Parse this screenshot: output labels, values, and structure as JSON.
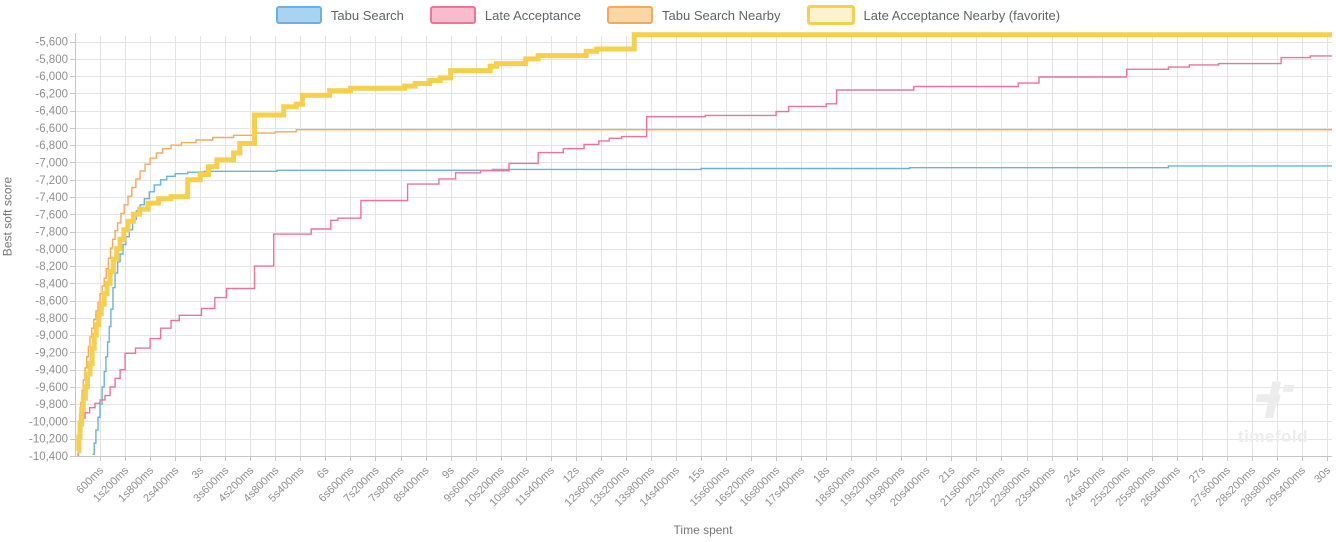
{
  "watermark": {
    "text": "timefold"
  },
  "colors": {
    "grid": "#e4e4e4",
    "axis_line": "#c6c6c6",
    "tick_text": "#8f8f8f",
    "axis_title_text": "#757575",
    "legend_text": "#5f6368",
    "watermark": "#ececec",
    "background": "#ffffff"
  },
  "chart_data": {
    "type": "line",
    "step": true,
    "title": "",
    "xlabel": "Time spent",
    "ylabel": "Best soft score",
    "xlim_ms": [
      0,
      30000
    ],
    "ylim": [
      -10400,
      -5500
    ],
    "grid": true,
    "legend_position": "top",
    "x_tick_interval_ms": 600,
    "x_tick_labels": [
      "600ms",
      "1s200ms",
      "1s800ms",
      "2s400ms",
      "3s",
      "3s600ms",
      "4s200ms",
      "4s800ms",
      "5s400ms",
      "6s",
      "6s600ms",
      "7s200ms",
      "7s800ms",
      "8s400ms",
      "9s",
      "9s600ms",
      "10s200ms",
      "10s800ms",
      "11s400ms",
      "12s",
      "12s600ms",
      "13s200ms",
      "13s800ms",
      "14s400ms",
      "15s",
      "15s600ms",
      "16s200ms",
      "16s800ms",
      "17s400ms",
      "18s",
      "18s600ms",
      "19s200ms",
      "19s800ms",
      "20s400ms",
      "21s",
      "21s600ms",
      "22s200ms",
      "22s800ms",
      "23s400ms",
      "24s",
      "24s600ms",
      "25s200ms",
      "25s800ms",
      "26s400ms",
      "27s",
      "27s600ms",
      "28s200ms",
      "28s800ms",
      "29s400ms",
      "30s"
    ],
    "y_tick_values": [
      -5600,
      -5800,
      -6000,
      -6200,
      -6400,
      -6600,
      -6800,
      -7000,
      -7200,
      -7400,
      -7600,
      -7800,
      -8000,
      -8200,
      -8400,
      -8600,
      -8800,
      -9000,
      -9200,
      -9400,
      -9600,
      -9800,
      -10000,
      -10200,
      -10400
    ],
    "y_tick_labels": [
      "-5,600",
      "-5,800",
      "-6,000",
      "-6,200",
      "-6,400",
      "-6,600",
      "-6,800",
      "-7,000",
      "-7,200",
      "-7,400",
      "-7,600",
      "-7,800",
      "-8,000",
      "-8,200",
      "-8,400",
      "-8,600",
      "-8,800",
      "-9,000",
      "-9,200",
      "-9,400",
      "-9,600",
      "-9,800",
      "-10,000",
      "-10,200",
      "-10,400"
    ],
    "series": [
      {
        "name": "Tabu Search",
        "color": "#6ab0e4",
        "legend_fill": "#a8d4f2",
        "line_width": 1.4,
        "favorite": false,
        "points": [
          [
            420,
            -10380
          ],
          [
            460,
            -10250
          ],
          [
            500,
            -10100
          ],
          [
            550,
            -9950
          ],
          [
            600,
            -9800
          ],
          [
            650,
            -9600
          ],
          [
            700,
            -9420
          ],
          [
            740,
            -9250
          ],
          [
            780,
            -9080
          ],
          [
            820,
            -8900
          ],
          [
            860,
            -8700
          ],
          [
            910,
            -8450
          ],
          [
            960,
            -8280
          ],
          [
            1020,
            -8150
          ],
          [
            1080,
            -8060
          ],
          [
            1150,
            -7950
          ],
          [
            1220,
            -7860
          ],
          [
            1300,
            -7780
          ],
          [
            1380,
            -7660
          ],
          [
            1470,
            -7560
          ],
          [
            1560,
            -7490
          ],
          [
            1660,
            -7420
          ],
          [
            1780,
            -7340
          ],
          [
            1900,
            -7260
          ],
          [
            2050,
            -7200
          ],
          [
            2200,
            -7160
          ],
          [
            2400,
            -7130
          ],
          [
            2700,
            -7112
          ],
          [
            3100,
            -7102
          ],
          [
            4840,
            -7090
          ],
          [
            10000,
            -7080
          ],
          [
            15000,
            -7070
          ],
          [
            20000,
            -7060
          ],
          [
            26200,
            -7040
          ]
        ]
      },
      {
        "name": "Late Acceptance",
        "color": "#ee7299",
        "legend_fill": "#f8bccd",
        "line_width": 1.4,
        "favorite": false,
        "points": [
          [
            50,
            -10390
          ],
          [
            80,
            -10280
          ],
          [
            110,
            -10160
          ],
          [
            150,
            -10050
          ],
          [
            190,
            -9960
          ],
          [
            240,
            -9900
          ],
          [
            350,
            -9840
          ],
          [
            480,
            -9790
          ],
          [
            600,
            -9750
          ],
          [
            720,
            -9700
          ],
          [
            840,
            -9600
          ],
          [
            960,
            -9500
          ],
          [
            1080,
            -9400
          ],
          [
            1200,
            -9210
          ],
          [
            1450,
            -9150
          ],
          [
            1800,
            -9040
          ],
          [
            2050,
            -8920
          ],
          [
            2300,
            -8830
          ],
          [
            2500,
            -8770
          ],
          [
            3030,
            -8690
          ],
          [
            3350,
            -8565
          ],
          [
            3630,
            -8460
          ],
          [
            4300,
            -8200
          ],
          [
            4760,
            -7830
          ],
          [
            5660,
            -7770
          ],
          [
            6130,
            -7670
          ],
          [
            6300,
            -7645
          ],
          [
            6850,
            -7440
          ],
          [
            7970,
            -7250
          ],
          [
            8720,
            -7190
          ],
          [
            9120,
            -7120
          ],
          [
            9720,
            -7095
          ],
          [
            10400,
            -7010
          ],
          [
            11100,
            -6885
          ],
          [
            11700,
            -6840
          ],
          [
            12200,
            -6790
          ],
          [
            12550,
            -6750
          ],
          [
            12800,
            -6720
          ],
          [
            13100,
            -6700
          ],
          [
            13700,
            -6470
          ],
          [
            15100,
            -6455
          ],
          [
            16800,
            -6410
          ],
          [
            17100,
            -6350
          ],
          [
            18000,
            -6320
          ],
          [
            18250,
            -6160
          ],
          [
            20100,
            -6120
          ],
          [
            22600,
            -6080
          ],
          [
            23100,
            -6010
          ],
          [
            25200,
            -5920
          ],
          [
            26200,
            -5895
          ],
          [
            26700,
            -5870
          ],
          [
            27400,
            -5855
          ],
          [
            28900,
            -5785
          ],
          [
            29600,
            -5765
          ]
        ]
      },
      {
        "name": "Tabu Search Nearby",
        "color": "#f4a85c",
        "legend_fill": "#fbd7a5",
        "line_width": 1.4,
        "favorite": false,
        "points": [
          [
            50,
            -10230
          ],
          [
            80,
            -10080
          ],
          [
            110,
            -9920
          ],
          [
            140,
            -9780
          ],
          [
            170,
            -9640
          ],
          [
            200,
            -9520
          ],
          [
            240,
            -9380
          ],
          [
            280,
            -9250
          ],
          [
            320,
            -9130
          ],
          [
            360,
            -9020
          ],
          [
            400,
            -8920
          ],
          [
            450,
            -8820
          ],
          [
            500,
            -8720
          ],
          [
            550,
            -8620
          ],
          [
            600,
            -8520
          ],
          [
            650,
            -8430
          ],
          [
            700,
            -8340
          ],
          [
            750,
            -8230
          ],
          [
            800,
            -8110
          ],
          [
            850,
            -7990
          ],
          [
            900,
            -7890
          ],
          [
            960,
            -7790
          ],
          [
            1020,
            -7700
          ],
          [
            1100,
            -7590
          ],
          [
            1180,
            -7490
          ],
          [
            1270,
            -7390
          ],
          [
            1360,
            -7290
          ],
          [
            1460,
            -7190
          ],
          [
            1560,
            -7100
          ],
          [
            1680,
            -7020
          ],
          [
            1800,
            -6950
          ],
          [
            1950,
            -6890
          ],
          [
            2100,
            -6840
          ],
          [
            2300,
            -6800
          ],
          [
            2550,
            -6770
          ],
          [
            2900,
            -6740
          ],
          [
            3300,
            -6710
          ],
          [
            3800,
            -6685
          ],
          [
            4300,
            -6660
          ],
          [
            4800,
            -6645
          ],
          [
            5300,
            -6620
          ]
        ]
      },
      {
        "name": "Late Acceptance Nearby (favorite)",
        "color": "#f6cf4d",
        "legend_fill": "#fcf2cf",
        "line_width": 5,
        "favorite": true,
        "points": [
          [
            50,
            -10340
          ],
          [
            90,
            -10180
          ],
          [
            120,
            -10020
          ],
          [
            160,
            -9860
          ],
          [
            200,
            -9730
          ],
          [
            250,
            -9600
          ],
          [
            300,
            -9450
          ],
          [
            360,
            -9330
          ],
          [
            410,
            -9150
          ],
          [
            460,
            -9000
          ],
          [
            510,
            -8880
          ],
          [
            570,
            -8750
          ],
          [
            630,
            -8640
          ],
          [
            700,
            -8520
          ],
          [
            770,
            -8400
          ],
          [
            840,
            -8260
          ],
          [
            920,
            -8120
          ],
          [
            1000,
            -8000
          ],
          [
            1080,
            -7890
          ],
          [
            1170,
            -7780
          ],
          [
            1270,
            -7680
          ],
          [
            1400,
            -7600
          ],
          [
            1550,
            -7540
          ],
          [
            1750,
            -7470
          ],
          [
            2000,
            -7420
          ],
          [
            2300,
            -7395
          ],
          [
            2700,
            -7200
          ],
          [
            3000,
            -7140
          ],
          [
            3200,
            -7050
          ],
          [
            3400,
            -6970
          ],
          [
            3800,
            -6890
          ],
          [
            3950,
            -6780
          ],
          [
            4300,
            -6450
          ],
          [
            5000,
            -6355
          ],
          [
            5300,
            -6325
          ],
          [
            5450,
            -6220
          ],
          [
            6100,
            -6170
          ],
          [
            6600,
            -6140
          ],
          [
            7900,
            -6115
          ],
          [
            8150,
            -6085
          ],
          [
            8500,
            -6050
          ],
          [
            8750,
            -6020
          ],
          [
            9000,
            -5935
          ],
          [
            9950,
            -5885
          ],
          [
            10100,
            -5855
          ],
          [
            10800,
            -5800
          ],
          [
            11100,
            -5762
          ],
          [
            12250,
            -5712
          ],
          [
            12500,
            -5685
          ],
          [
            13400,
            -5520
          ]
        ]
      }
    ]
  }
}
